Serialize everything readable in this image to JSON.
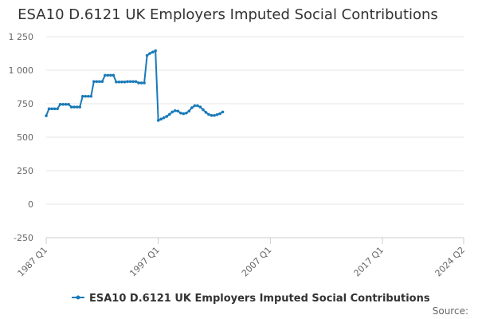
{
  "chart_data": {
    "type": "line",
    "title": "ESA10 D.6121 UK Employers Imputed Social Contributions",
    "xlabel": "",
    "ylabel": "",
    "ylim": [
      -250,
      1250
    ],
    "yticks": [
      -250,
      0,
      250,
      500,
      750,
      1000,
      1250
    ],
    "ytick_labels": [
      "-250",
      "0",
      "250",
      "500",
      "750",
      "1 000",
      "1 250"
    ],
    "xlim": [
      "1987 Q1",
      "2024 Q2"
    ],
    "xtick_labels": [
      "1987 Q1",
      "1997 Q1",
      "2007 Q1",
      "2017 Q1",
      "2024 Q2"
    ],
    "grid": true,
    "legend": "bottom",
    "source_label": "Source:",
    "color": "#1a7ab8",
    "series": [
      {
        "name": "ESA10 D.6121 UK Employers Imputed Social Contributions",
        "x": [
          "1987 Q1",
          "1987 Q2",
          "1987 Q3",
          "1987 Q4",
          "1988 Q1",
          "1988 Q2",
          "1988 Q3",
          "1988 Q4",
          "1989 Q1",
          "1989 Q2",
          "1989 Q3",
          "1989 Q4",
          "1990 Q1",
          "1990 Q2",
          "1990 Q3",
          "1990 Q4",
          "1991 Q1",
          "1991 Q2",
          "1991 Q3",
          "1991 Q4",
          "1992 Q1",
          "1992 Q2",
          "1992 Q3",
          "1992 Q4",
          "1993 Q1",
          "1993 Q2",
          "1993 Q3",
          "1993 Q4",
          "1994 Q1",
          "1994 Q2",
          "1994 Q3",
          "1994 Q4",
          "1995 Q1",
          "1995 Q2",
          "1995 Q3",
          "1995 Q4",
          "1996 Q1",
          "1996 Q2",
          "1996 Q3",
          "1996 Q4",
          "1997 Q1",
          "1997 Q2",
          "1997 Q3",
          "1997 Q4",
          "1998 Q1",
          "1998 Q2",
          "1998 Q3",
          "1998 Q4",
          "1999 Q1",
          "1999 Q2",
          "1999 Q3",
          "1999 Q4",
          "2000 Q1",
          "2000 Q2",
          "2000 Q3",
          "2000 Q4",
          "2001 Q1",
          "2001 Q2",
          "2001 Q3",
          "2001 Q4",
          "2002 Q1",
          "2002 Q2",
          "2002 Q3",
          "2002 Q4",
          "2003 Q1"
        ],
        "values": [
          660,
          712,
          712,
          712,
          712,
          745,
          745,
          745,
          745,
          725,
          725,
          725,
          725,
          805,
          805,
          805,
          805,
          915,
          915,
          915,
          915,
          962,
          962,
          962,
          962,
          912,
          912,
          912,
          912,
          915,
          915,
          915,
          915,
          905,
          905,
          905,
          1110,
          1125,
          1135,
          1145,
          625,
          635,
          645,
          655,
          670,
          688,
          698,
          695,
          680,
          675,
          680,
          695,
          720,
          735,
          735,
          725,
          705,
          685,
          670,
          662,
          662,
          668,
          675,
          688,
          null
        ]
      }
    ]
  }
}
